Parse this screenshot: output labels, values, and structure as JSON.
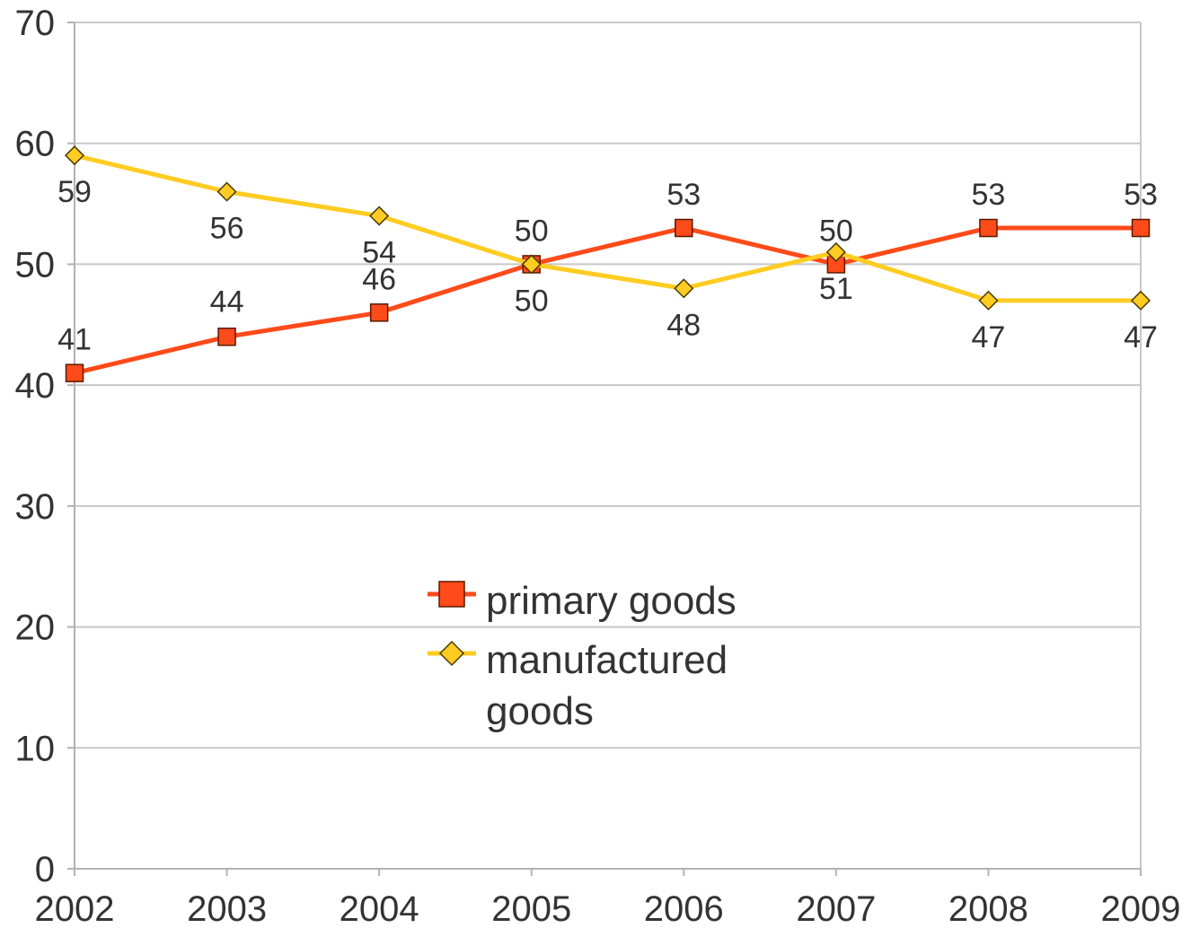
{
  "chart_data": {
    "type": "line",
    "categories": [
      "2002",
      "2003",
      "2004",
      "2005",
      "2006",
      "2007",
      "2008",
      "2009"
    ],
    "series": [
      {
        "name": "primary goods",
        "values": [
          41,
          44,
          46,
          50,
          53,
          50,
          53,
          53
        ],
        "labels": [
          "41",
          "44",
          "46",
          "50",
          "53",
          "50",
          "53",
          "53"
        ],
        "color": "#ff4a1a",
        "marker": "square"
      },
      {
        "name": "manufactured goods",
        "values": [
          59,
          56,
          54,
          50,
          48,
          51,
          47,
          47
        ],
        "labels": [
          "59",
          "56",
          "54",
          "50",
          "48",
          "51",
          "47",
          "47"
        ],
        "color": "#ffcc22",
        "marker": "diamond"
      }
    ],
    "y_ticks": [
      "0",
      "10",
      "20",
      "30",
      "40",
      "50",
      "60",
      "70"
    ],
    "ylim": [
      0,
      70
    ],
    "grid": true,
    "legend": {
      "position": "center",
      "items": [
        {
          "lines": [
            "primary goods"
          ]
        },
        {
          "lines": [
            "manufactured",
            "goods"
          ]
        }
      ]
    },
    "colors": {
      "grid": "#c8c8c8",
      "axis": "#b3b3b3",
      "text": "#333333",
      "marker_stroke": "#5a1a00"
    }
  }
}
